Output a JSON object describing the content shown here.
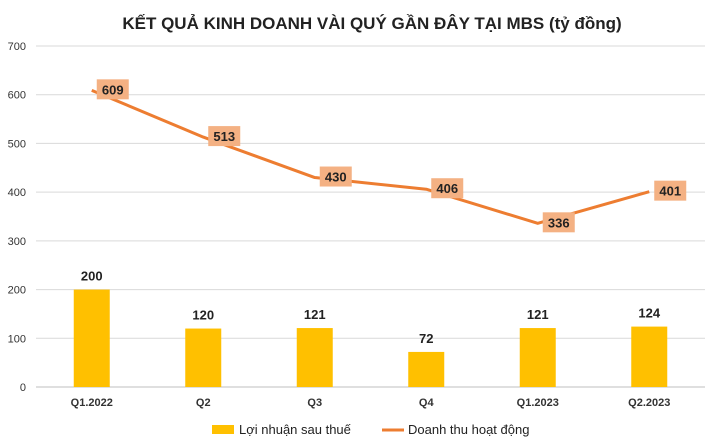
{
  "chart_data": {
    "type": "bar",
    "title": "KẾT QUẢ KINH DOANH VÀI QUÝ GẦN ĐÂY TẠI MBS (tỷ đồng)",
    "xlabel": "",
    "ylabel": "",
    "categories": [
      "Q1.2022",
      "Q2",
      "Q3",
      "Q4",
      "Q1.2023",
      "Q2.2023"
    ],
    "ylim": [
      0,
      700
    ],
    "yticks": [
      "0",
      "100",
      "200",
      "300",
      "400",
      "500",
      "600",
      "700"
    ],
    "grid": true,
    "legend_position": "bottom",
    "series": [
      {
        "name": "Lợi nhuận sau thuế",
        "type": "bar",
        "color": "#FFC000",
        "values": [
          200,
          120,
          121,
          72,
          121,
          124
        ]
      },
      {
        "name": "Doanh thu hoạt động",
        "type": "line",
        "color": "#ED7D31",
        "label_bg": "#F4B183",
        "values": [
          609,
          513,
          430,
          406,
          336,
          401
        ]
      }
    ],
    "data_labels": {
      "bars": [
        "200",
        "120",
        "121",
        "72",
        "121",
        "124"
      ],
      "line": [
        "609",
        "513",
        "430",
        "406",
        "336",
        "401"
      ]
    }
  }
}
